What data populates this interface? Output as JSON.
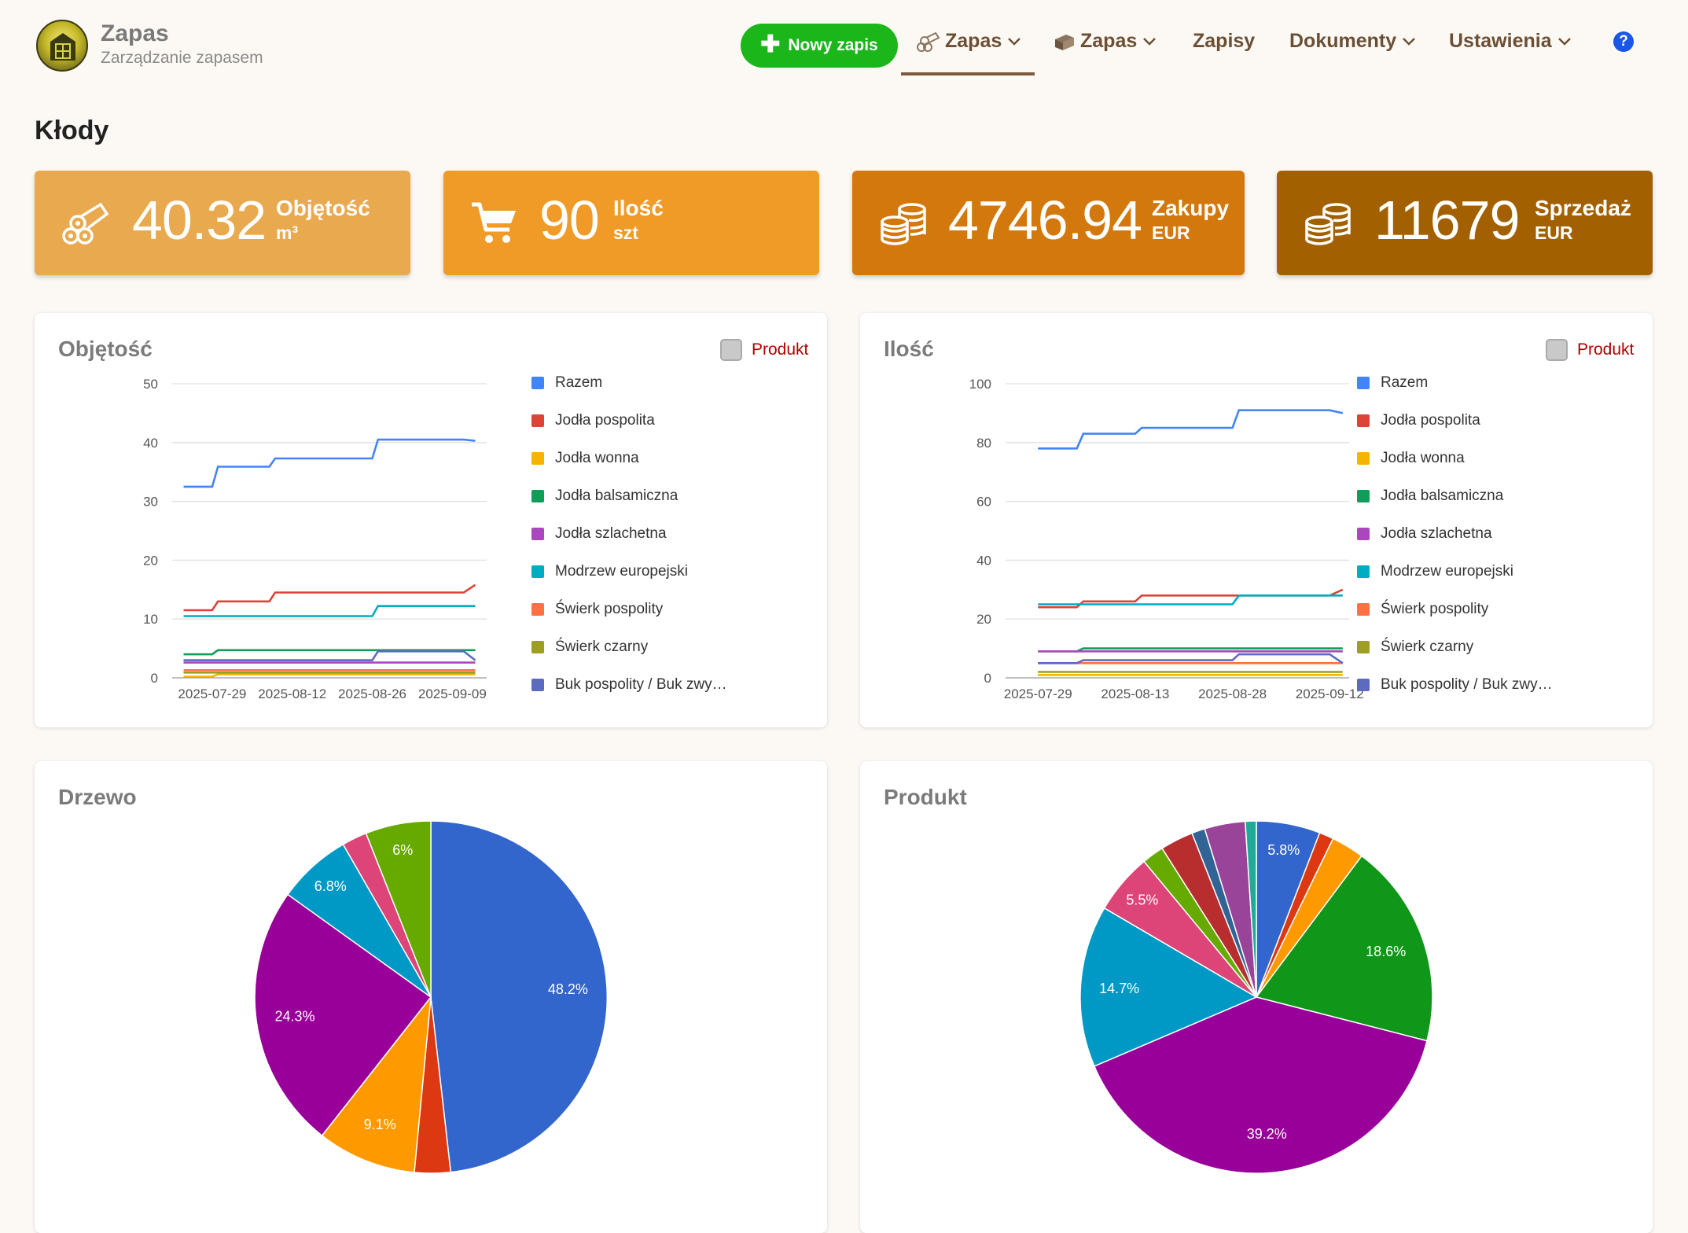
{
  "header": {
    "app_name": "Zapas",
    "app_subtitle": "Zarządzanie zapasem",
    "new_button": "Nowy zapis",
    "nav": [
      {
        "label": "Zapas",
        "icon": "logs-icon",
        "active": true
      },
      {
        "label": "Zapas",
        "icon": "boards-icon",
        "active": false
      },
      {
        "label": "Zapisy",
        "icon": "",
        "active": false
      },
      {
        "label": "Dokumenty",
        "icon": "",
        "active": false
      },
      {
        "label": "Ustawienia",
        "icon": "",
        "active": false
      }
    ],
    "help": "?"
  },
  "page_title": "Kłody",
  "stats": [
    {
      "value": "40.32",
      "label": "Objętość",
      "unit": "m³",
      "color": "#e9a94f",
      "icon": "logs-icon"
    },
    {
      "value": "90",
      "label": "Ilość",
      "unit": "szt",
      "color": "#f09a28",
      "icon": "cart-icon"
    },
    {
      "value": "4746.94",
      "label": "Zakupy",
      "unit": "EUR",
      "color": "#d3780c",
      "icon": "coins-icon"
    },
    {
      "value": "11679",
      "label": "Sprzedaż",
      "unit": "EUR",
      "color": "#a36000",
      "icon": "coins-icon"
    }
  ],
  "toggle_label": "Produkt",
  "legend": [
    {
      "name": "Razem",
      "color": "#4285f4"
    },
    {
      "name": "Jodła pospolita",
      "color": "#db4437"
    },
    {
      "name": "Jodła wonna",
      "color": "#f4b400"
    },
    {
      "name": "Jodła balsamiczna",
      "color": "#0f9d58"
    },
    {
      "name": "Jodła szlachetna",
      "color": "#ab47bc"
    },
    {
      "name": "Modrzew europejski",
      "color": "#00acc1"
    },
    {
      "name": "Świerk pospolity",
      "color": "#ff7043"
    },
    {
      "name": "Świerk czarny",
      "color": "#9e9d24"
    },
    {
      "name": "Buk pospolity / Buk zwy…",
      "color": "#5c6bc0"
    }
  ],
  "chart_data": [
    {
      "type": "line",
      "title": "Objętość",
      "ylim": [
        0,
        50
      ],
      "yticks": [
        "0",
        "10",
        "20",
        "30",
        "40",
        "50"
      ],
      "xticks": [
        "2025-07-29",
        "2025-08-12",
        "2025-08-26",
        "2025-09-09"
      ],
      "x": [
        "2025-07-24",
        "2025-07-29",
        "2025-07-30",
        "2025-08-08",
        "2025-08-09",
        "2025-08-26",
        "2025-08-27",
        "2025-09-11",
        "2025-09-13"
      ],
      "series": [
        {
          "name": "Razem",
          "color": "#4285f4",
          "values": [
            32.5,
            32.5,
            35.9,
            35.9,
            37.3,
            37.3,
            40.5,
            40.5,
            40.3
          ]
        },
        {
          "name": "Jodła pospolita",
          "color": "#db4437",
          "values": [
            11.5,
            11.5,
            13.0,
            13.0,
            14.5,
            14.5,
            14.5,
            14.5,
            15.8
          ]
        },
        {
          "name": "Jodła wonna",
          "color": "#f4b400",
          "values": [
            0.2,
            0.2,
            0.6,
            0.6,
            0.6,
            0.6,
            0.6,
            0.6,
            0.6
          ]
        },
        {
          "name": "Jodła balsamiczna",
          "color": "#0f9d58",
          "values": [
            4.0,
            4.0,
            4.7,
            4.7,
            4.7,
            4.7,
            4.7,
            4.7,
            4.7
          ]
        },
        {
          "name": "Jodła szlachetna",
          "color": "#ab47bc",
          "values": [
            2.6,
            2.6,
            2.6,
            2.6,
            2.6,
            2.6,
            2.6,
            2.6,
            2.6
          ]
        },
        {
          "name": "Modrzew europejski",
          "color": "#00acc1",
          "values": [
            10.5,
            10.5,
            10.5,
            10.5,
            10.5,
            10.5,
            12.2,
            12.2,
            12.2
          ]
        },
        {
          "name": "Świerk pospolity",
          "color": "#ff7043",
          "values": [
            1.3,
            1.3,
            1.3,
            1.3,
            1.3,
            1.3,
            1.3,
            1.3,
            1.3
          ]
        },
        {
          "name": "Świerk czarny",
          "color": "#9e9d24",
          "values": [
            0.9,
            0.9,
            0.9,
            0.9,
            0.9,
            0.9,
            0.9,
            0.9,
            0.9
          ]
        },
        {
          "name": "Buk pospolity / Buk zwy…",
          "color": "#5c6bc0",
          "values": [
            3.0,
            3.0,
            3.0,
            3.0,
            3.0,
            3.0,
            4.5,
            4.5,
            3.0
          ]
        }
      ]
    },
    {
      "type": "line",
      "title": "Ilość",
      "ylim": [
        0,
        100
      ],
      "yticks": [
        "0",
        "20",
        "40",
        "60",
        "80",
        "100"
      ],
      "xticks": [
        "2025-07-29",
        "2025-08-13",
        "2025-08-28",
        "2025-09-12"
      ],
      "x": [
        "2025-07-29",
        "2025-08-04",
        "2025-08-05",
        "2025-08-13",
        "2025-08-14",
        "2025-08-28",
        "2025-08-29",
        "2025-09-12",
        "2025-09-14"
      ],
      "series": [
        {
          "name": "Razem",
          "color": "#4285f4",
          "values": [
            78,
            78,
            83,
            83,
            85,
            85,
            91,
            91,
            90
          ]
        },
        {
          "name": "Jodła pospolita",
          "color": "#db4437",
          "values": [
            24,
            24,
            26,
            26,
            28,
            28,
            28,
            28,
            30
          ]
        },
        {
          "name": "Jodła wonna",
          "color": "#f4b400",
          "values": [
            1,
            1,
            1,
            1,
            1,
            1,
            1,
            1,
            1
          ]
        },
        {
          "name": "Jodła balsamiczna",
          "color": "#0f9d58",
          "values": [
            9,
            9,
            10,
            10,
            10,
            10,
            10,
            10,
            10
          ]
        },
        {
          "name": "Jodła szlachetna",
          "color": "#ab47bc",
          "values": [
            9,
            9,
            9,
            9,
            9,
            9,
            9,
            9,
            9
          ]
        },
        {
          "name": "Modrzew europejski",
          "color": "#00acc1",
          "values": [
            25,
            25,
            25,
            25,
            25,
            25,
            28,
            28,
            28
          ]
        },
        {
          "name": "Świerk pospolity",
          "color": "#ff7043",
          "values": [
            5,
            5,
            5,
            5,
            5,
            5,
            5,
            5,
            5
          ]
        },
        {
          "name": "Świerk czarny",
          "color": "#9e9d24",
          "values": [
            2,
            2,
            2,
            2,
            2,
            2,
            2,
            2,
            2
          ]
        },
        {
          "name": "Buk pospolity / Buk zwy…",
          "color": "#5c6bc0",
          "values": [
            5,
            5,
            6,
            6,
            6,
            6,
            8,
            8,
            5
          ]
        }
      ]
    },
    {
      "type": "pie",
      "title": "Drzewo",
      "slices": [
        {
          "value": 48.2,
          "label": "48.2%",
          "color": "#3366cc"
        },
        {
          "value": 3.3,
          "label": "",
          "color": "#dc3912"
        },
        {
          "value": 9.1,
          "label": "9.1%",
          "color": "#ff9900"
        },
        {
          "value": 24.3,
          "label": "24.3%",
          "color": "#990099"
        },
        {
          "value": 6.8,
          "label": "6.8%",
          "color": "#0099c6"
        },
        {
          "value": 2.3,
          "label": "",
          "color": "#dd4477"
        },
        {
          "value": 6.0,
          "label": "6%",
          "color": "#66aa00"
        }
      ]
    },
    {
      "type": "pie",
      "title": "Produkt",
      "slices": [
        {
          "value": 5.8,
          "label": "5.8%",
          "color": "#3366cc"
        },
        {
          "value": 1.3,
          "label": "",
          "color": "#dc3912"
        },
        {
          "value": 3.0,
          "label": "",
          "color": "#ff9900"
        },
        {
          "value": 18.6,
          "label": "18.6%",
          "color": "#109618"
        },
        {
          "value": 39.2,
          "label": "39.2%",
          "color": "#990099"
        },
        {
          "value": 14.7,
          "label": "14.7%",
          "color": "#0099c6"
        },
        {
          "value": 5.5,
          "label": "5.5%",
          "color": "#dd4477"
        },
        {
          "value": 2.0,
          "label": "",
          "color": "#66aa00"
        },
        {
          "value": 3.0,
          "label": "",
          "color": "#b82e2e"
        },
        {
          "value": 1.2,
          "label": "",
          "color": "#316395"
        },
        {
          "value": 3.7,
          "label": "",
          "color": "#994499"
        },
        {
          "value": 1.0,
          "label": "",
          "color": "#22aa99"
        }
      ]
    }
  ]
}
